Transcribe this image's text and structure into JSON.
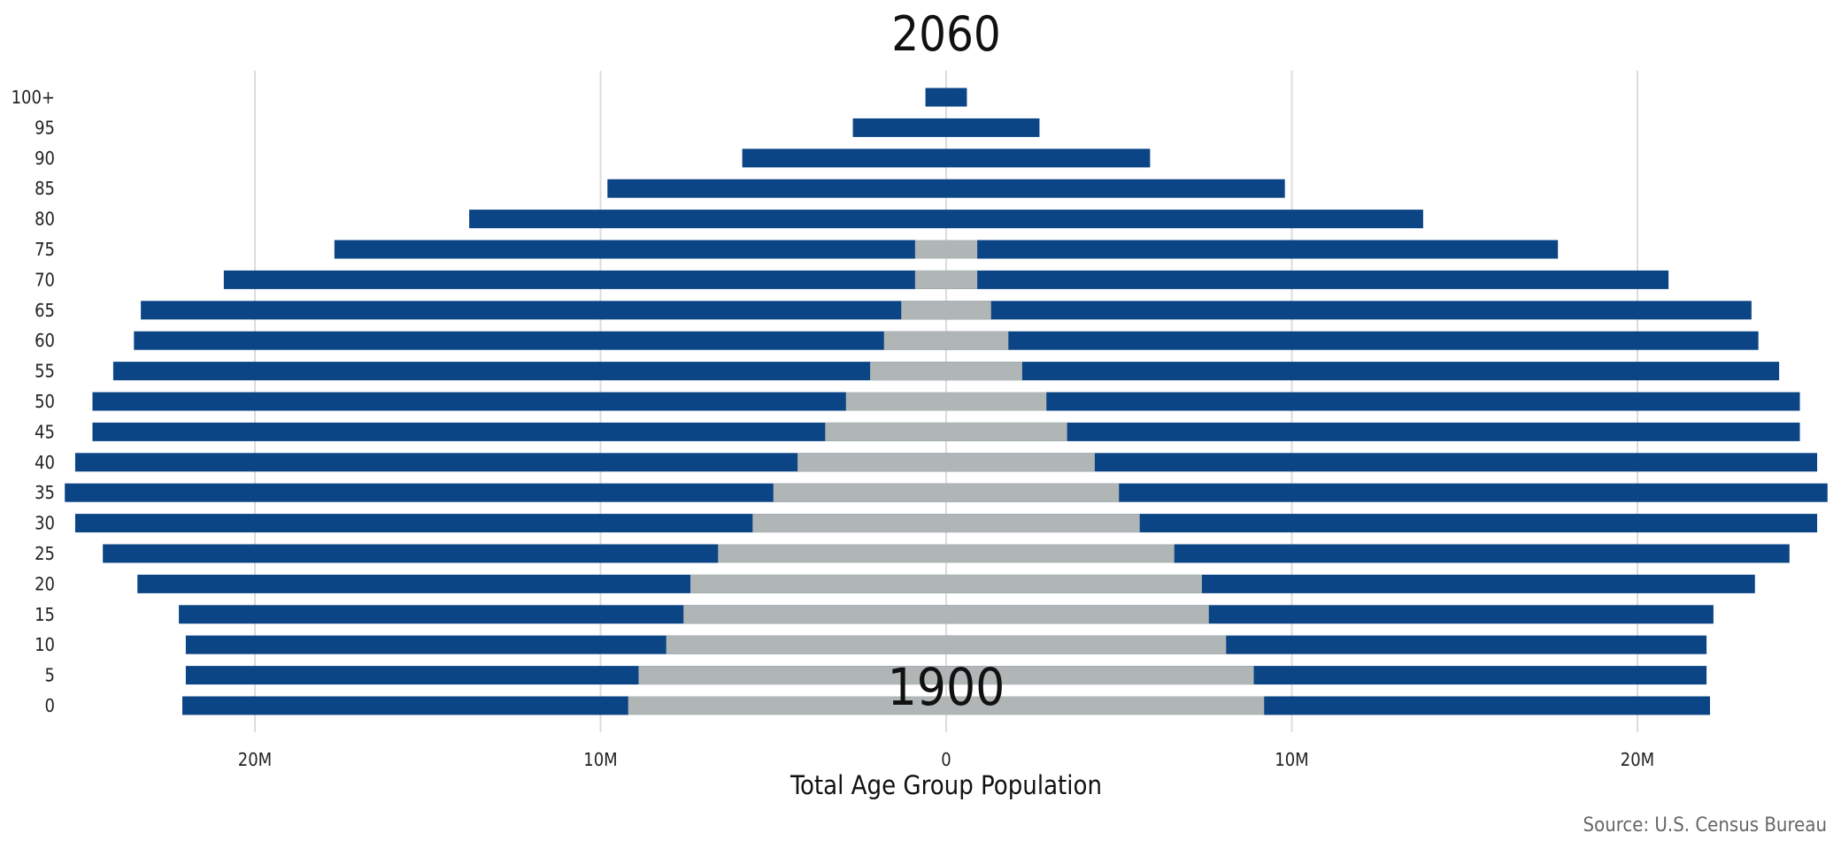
{
  "chart_data": {
    "type": "bar",
    "title_top": "2060",
    "title_bottom": "1900",
    "xlabel": "Total Age Group Population",
    "source": "Source: U.S. Census Bureau",
    "categories": [
      "0",
      "5",
      "10",
      "15",
      "20",
      "25",
      "30",
      "35",
      "40",
      "45",
      "50",
      "55",
      "60",
      "65",
      "70",
      "75",
      "80",
      "85",
      "90",
      "95",
      "100+"
    ],
    "x_tick_labels": [
      "20M",
      "10M",
      "0",
      "10M",
      "20M"
    ],
    "x_tick_values": [
      -20,
      -10,
      0,
      10,
      20
    ],
    "x_unit": "millions",
    "xlim": [
      -25.5,
      25.5
    ],
    "grid": true,
    "series": [
      {
        "name": "2060",
        "color": "#0b4585",
        "left": [
          22.1,
          22.0,
          22.0,
          22.2,
          23.4,
          24.4,
          25.2,
          25.5,
          25.2,
          24.7,
          24.7,
          24.1,
          23.5,
          23.3,
          20.9,
          17.7,
          13.8,
          9.8,
          5.9,
          2.7,
          0.6
        ],
        "right": [
          22.1,
          22.0,
          22.0,
          22.2,
          23.4,
          24.4,
          25.2,
          25.5,
          25.2,
          24.7,
          24.7,
          24.1,
          23.5,
          23.3,
          20.9,
          17.7,
          13.8,
          9.8,
          5.9,
          2.7,
          0.6
        ]
      },
      {
        "name": "1900",
        "color": "#b0b5b5",
        "left": [
          9.2,
          8.9,
          8.1,
          7.6,
          7.4,
          6.6,
          5.6,
          5.0,
          4.3,
          3.5,
          2.9,
          2.2,
          1.8,
          1.3,
          0.9,
          0.9,
          0,
          0,
          0,
          0,
          0
        ],
        "right": [
          9.2,
          8.9,
          8.1,
          7.6,
          7.4,
          6.6,
          5.6,
          5.0,
          4.3,
          3.5,
          2.9,
          2.2,
          1.8,
          1.3,
          0.9,
          0.9,
          0,
          0,
          0,
          0,
          0
        ]
      }
    ]
  }
}
